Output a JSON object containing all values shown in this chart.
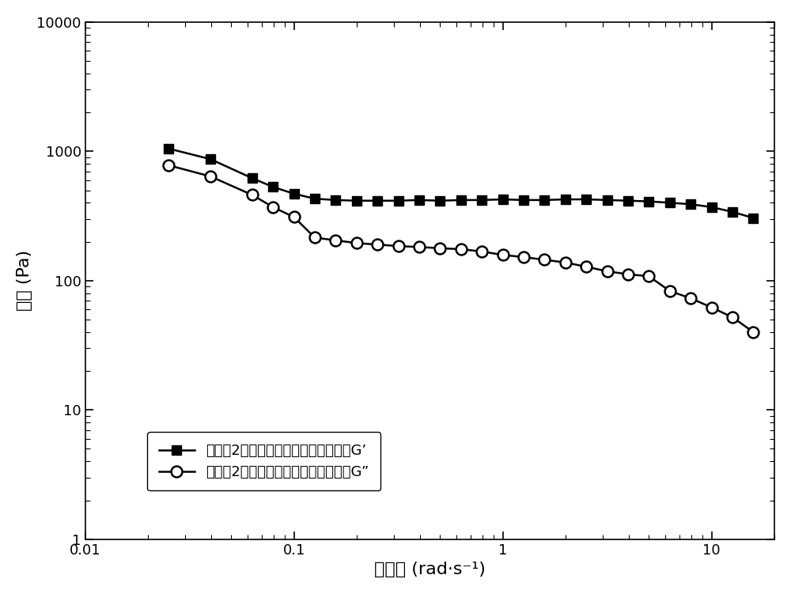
{
  "G_prime_x": [
    0.0251,
    0.0398,
    0.0631,
    0.0794,
    0.1,
    0.1259,
    0.1585,
    0.1995,
    0.2512,
    0.3162,
    0.3981,
    0.5012,
    0.631,
    0.7943,
    1.0,
    1.2589,
    1.5849,
    1.9953,
    2.5119,
    3.1623,
    3.9811,
    5.0119,
    6.3096,
    7.9433,
    10.0,
    12.589,
    15.849
  ],
  "G_prime_y": [
    1050,
    870,
    620,
    530,
    470,
    430,
    420,
    415,
    415,
    415,
    420,
    415,
    420,
    420,
    425,
    420,
    420,
    425,
    425,
    420,
    415,
    410,
    400,
    390,
    370,
    340,
    305
  ],
  "G_dprime_x": [
    0.0251,
    0.0398,
    0.0631,
    0.0794,
    0.1,
    0.1259,
    0.1585,
    0.1995,
    0.2512,
    0.3162,
    0.3981,
    0.5012,
    0.631,
    0.7943,
    1.0,
    1.2589,
    1.5849,
    1.9953,
    2.5119,
    3.1623,
    3.9811,
    5.0119,
    6.3096,
    7.9433,
    10.0,
    12.589,
    15.849
  ],
  "G_dprime_y": [
    780,
    640,
    460,
    370,
    310,
    215,
    205,
    195,
    190,
    185,
    182,
    178,
    175,
    168,
    158,
    152,
    145,
    138,
    128,
    118,
    112,
    108,
    83,
    73,
    62,
    52,
    40
  ],
  "xlabel": "角频率 (rad·s⁻¹)",
  "ylabel": "模量 (Pa)",
  "xlim": [
    0.01,
    20
  ],
  "ylim": [
    1,
    10000
  ],
  "legend1": "实施例2所述的耐温型复合清洁压裂液G’",
  "legend2": "实施例2所述的耐温型复合清洁压裂液G”",
  "line_color": "#000000",
  "bg_color": "#ffffff"
}
